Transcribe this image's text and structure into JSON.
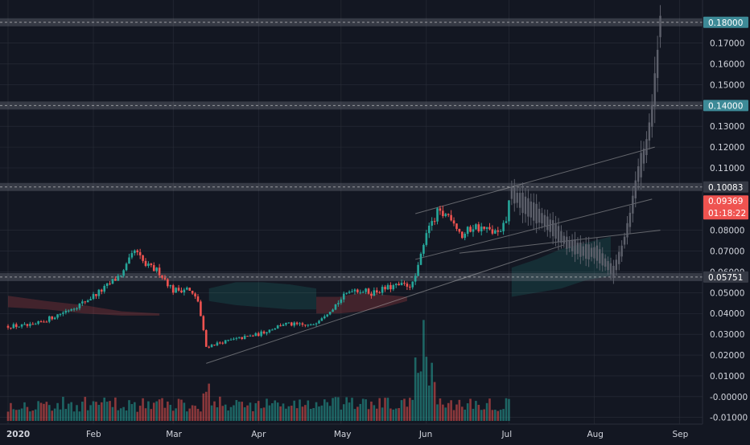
{
  "chart_data": {
    "type": "candlestick",
    "title": "",
    "xlabel": "",
    "ylabel": "",
    "ylim": [
      -0.0105,
      0.183
    ],
    "x_ticks": [
      "2020",
      "Feb",
      "Mar",
      "Apr",
      "May",
      "Jun",
      "Jul",
      "Aug",
      "Sep"
    ],
    "y_ticks": [
      "0.17000",
      "0.16000",
      "0.15000",
      "0.13000",
      "0.12000",
      "0.11000",
      "0.08000",
      "0.07000",
      "0.06000",
      "0.05000",
      "0.04000",
      "0.03000",
      "0.02000",
      "0.01000",
      "-0.00000",
      "-0.01000"
    ],
    "levels": [
      {
        "name": "resistance-018",
        "value": 0.18,
        "label": "0.18000",
        "color": "#3d8a97"
      },
      {
        "name": "resistance-014",
        "value": 0.14,
        "label": "0.14000",
        "color": "#3d8a97"
      },
      {
        "name": "resistance-01008",
        "value": 0.10083,
        "label": "0.10083",
        "color": "#363a45"
      },
      {
        "name": "support-0057",
        "value": 0.05751,
        "label": "0.05751",
        "color": "#363a45"
      }
    ],
    "last_price": {
      "label": "0.09369",
      "countdown": "01:18:22",
      "value": 0.09369,
      "color": "#ef5350"
    },
    "anchors": [
      [
        "2020-01-01",
        0.034
      ],
      [
        "2020-01-10",
        0.034
      ],
      [
        "2020-01-20",
        0.04
      ],
      [
        "2020-01-28",
        0.045
      ],
      [
        "2020-02-05",
        0.052
      ],
      [
        "2020-02-12",
        0.06
      ],
      [
        "2020-02-16",
        0.07
      ],
      [
        "2020-02-20",
        0.063
      ],
      [
        "2020-02-25",
        0.06
      ],
      [
        "2020-03-01",
        0.051
      ],
      [
        "2020-03-06",
        0.052
      ],
      [
        "2020-03-10",
        0.046
      ],
      [
        "2020-03-13",
        0.024
      ],
      [
        "2020-03-18",
        0.026
      ],
      [
        "2020-03-25",
        0.028
      ],
      [
        "2020-04-01",
        0.03
      ],
      [
        "2020-04-10",
        0.035
      ],
      [
        "2020-04-20",
        0.034
      ],
      [
        "2020-04-28",
        0.043
      ],
      [
        "2020-05-05",
        0.052
      ],
      [
        "2020-05-12",
        0.05
      ],
      [
        "2020-05-20",
        0.053
      ],
      [
        "2020-05-27",
        0.054
      ],
      [
        "2020-05-29",
        0.062
      ],
      [
        "2020-06-01",
        0.08
      ],
      [
        "2020-06-05",
        0.088
      ],
      [
        "2020-06-10",
        0.087
      ],
      [
        "2020-06-14",
        0.077
      ],
      [
        "2020-06-18",
        0.082
      ],
      [
        "2020-06-23",
        0.08
      ],
      [
        "2020-06-28",
        0.078
      ],
      [
        "2020-06-30",
        0.085
      ],
      [
        "2020-07-01",
        0.093
      ]
    ],
    "projection_anchors": [
      [
        "2020-07-02",
        0.098
      ],
      [
        "2020-07-07",
        0.092
      ],
      [
        "2020-07-12",
        0.087
      ],
      [
        "2020-07-17",
        0.081
      ],
      [
        "2020-07-22",
        0.074
      ],
      [
        "2020-07-28",
        0.07
      ],
      [
        "2020-08-02",
        0.069
      ],
      [
        "2020-08-06",
        0.063
      ],
      [
        "2020-08-08",
        0.06
      ],
      [
        "2020-08-11",
        0.07
      ],
      [
        "2020-08-14",
        0.085
      ],
      [
        "2020-08-17",
        0.107
      ],
      [
        "2020-08-20",
        0.12
      ],
      [
        "2020-08-22",
        0.135
      ],
      [
        "2020-08-24",
        0.16
      ],
      [
        "2020-08-25",
        0.178
      ]
    ],
    "trendlines": [
      {
        "name": "channel-upper",
        "from": [
          "2020-05-28",
          0.088
        ],
        "to": [
          "2020-08-23",
          0.12
        ]
      },
      {
        "name": "channel-mid",
        "from": [
          "2020-05-28",
          0.066
        ],
        "to": [
          "2020-08-22",
          0.095
        ]
      },
      {
        "name": "channel-lower",
        "from": [
          "2020-06-13",
          0.069
        ],
        "to": [
          "2020-08-25",
          0.08
        ]
      },
      {
        "name": "rising-support",
        "from": [
          "2020-03-13",
          0.016
        ],
        "to": [
          "2020-07-21",
          0.073
        ]
      }
    ],
    "cloud": [
      {
        "from": "2020-01-01",
        "to": "2020-02-25",
        "color": "red",
        "top": [
          0.0485,
          0.046,
          0.044,
          0.041,
          0.04
        ],
        "bottom": [
          0.043,
          0.042,
          0.04,
          0.039,
          0.039
        ]
      },
      {
        "from": "2020-03-14",
        "to": "2020-04-22",
        "color": "green",
        "top": [
          0.052,
          0.055,
          0.055,
          0.054,
          0.052
        ],
        "bottom": [
          0.046,
          0.044,
          0.043,
          0.042,
          0.042
        ]
      },
      {
        "from": "2020-04-22",
        "to": "2020-05-25",
        "color": "red",
        "top": [
          0.048,
          0.048,
          0.05,
          0.049,
          0.048
        ],
        "bottom": [
          0.04,
          0.04,
          0.041,
          0.043,
          0.046
        ]
      },
      {
        "from": "2020-07-02",
        "to": "2020-08-07",
        "color": "green",
        "top": [
          0.062,
          0.066,
          0.071,
          0.074,
          0.077
        ],
        "bottom": [
          0.048,
          0.05,
          0.052,
          0.056,
          0.058
        ]
      }
    ],
    "volume_note": "daily volume histogram; axis values not printed"
  },
  "colors": {
    "background": "#131722",
    "grid": "#2a2e39",
    "up": "#26a69a",
    "down": "#ef5350",
    "projection": "#5d606b",
    "axis_text": "#d1d4dc"
  }
}
